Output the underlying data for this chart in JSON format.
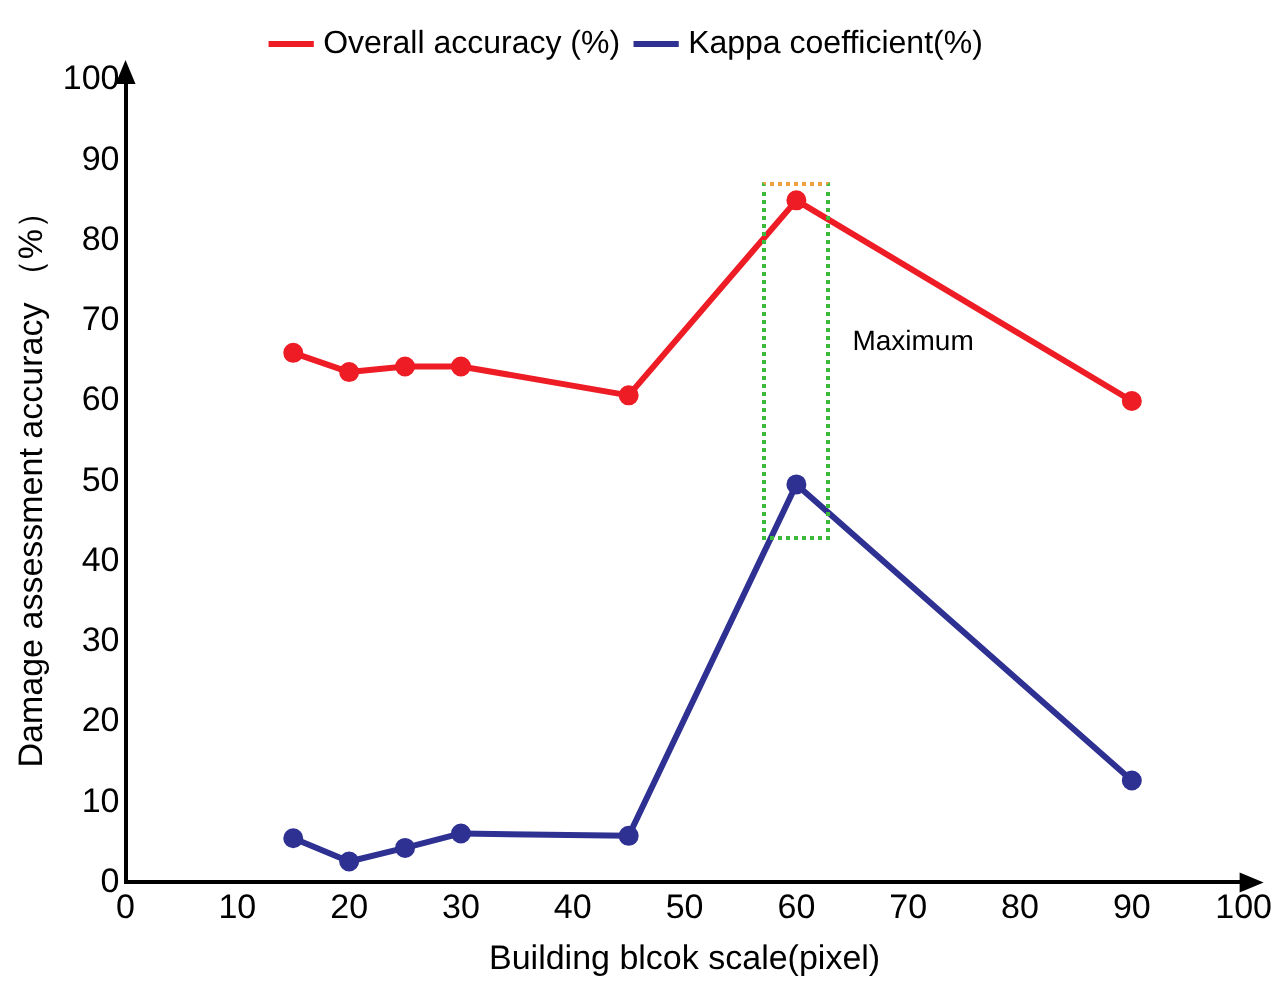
{
  "chart_data": {
    "type": "line",
    "xlabel": "Building blcok scale(pixel)",
    "ylabel": "Damage assessment accuracy （%）",
    "x": [
      15,
      20,
      25,
      30,
      45,
      60,
      90
    ],
    "series": [
      {
        "name": "Overall accuracy (%)",
        "color": "#ee1c25",
        "values": [
          66,
          63.6,
          64.3,
          64.3,
          60.7,
          85,
          60
        ]
      },
      {
        "name": "Kappa coefficient(%)",
        "color": "#2e3192",
        "values": [
          5.5,
          2.6,
          4.3,
          6.1,
          5.8,
          49.6,
          12.7
        ]
      }
    ],
    "xlim": [
      0,
      100
    ],
    "xticks": [
      0,
      10,
      20,
      30,
      40,
      50,
      60,
      70,
      80,
      90,
      100
    ],
    "ylim": [
      0,
      100
    ],
    "yticks": [
      0,
      10,
      20,
      30,
      40,
      50,
      60,
      70,
      80,
      90,
      100
    ],
    "annotations": [
      "Maximum"
    ],
    "grid": false,
    "legend": "top",
    "marker": "circle",
    "line_style": "solid"
  }
}
